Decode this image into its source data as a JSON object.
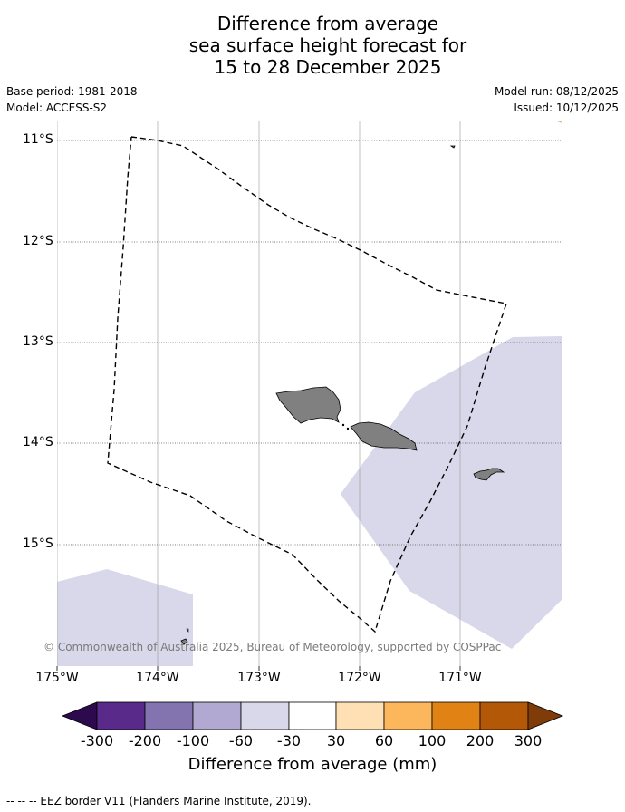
{
  "title": {
    "line1": "Difference from average",
    "line2": "sea surface height forecast for",
    "line3": "15 to 28 December 2025"
  },
  "meta": {
    "base_period": "Base period: 1981-2018",
    "model": "Model: ACCESS-S2",
    "model_run": "Model run: 08/12/2025",
    "issued": "Issued: 10/12/2025"
  },
  "axes": {
    "latitudes": [
      "11°S",
      "12°S",
      "13°S",
      "14°S",
      "15°S"
    ],
    "longitudes": [
      "175°W",
      "174°W",
      "173°W",
      "172°W",
      "171°W"
    ]
  },
  "copyright": "© Commonwealth of Australia 2025, Bureau of Meteorology, supported by COSPPac",
  "colorbar": {
    "title": "Difference from average (mm)",
    "ticks": [
      "-300",
      "-200",
      "-100",
      "-60",
      "-30",
      "30",
      "60",
      "100",
      "200",
      "300"
    ],
    "colors": [
      "#2d0a4e",
      "#5a2a8a",
      "#8374b0",
      "#b1a9d2",
      "#d8d8ea",
      "#ffffff",
      "#ffe0b4",
      "#fcb65b",
      "#e08214",
      "#b35806",
      "#7f3b08"
    ]
  },
  "footer": "--  --  -- EEZ border V11 (Flanders Marine Institute, 2019).",
  "colors": {
    "land": "#808080",
    "anomaly_light": "#d8d8ea",
    "grid": "#999999"
  }
}
